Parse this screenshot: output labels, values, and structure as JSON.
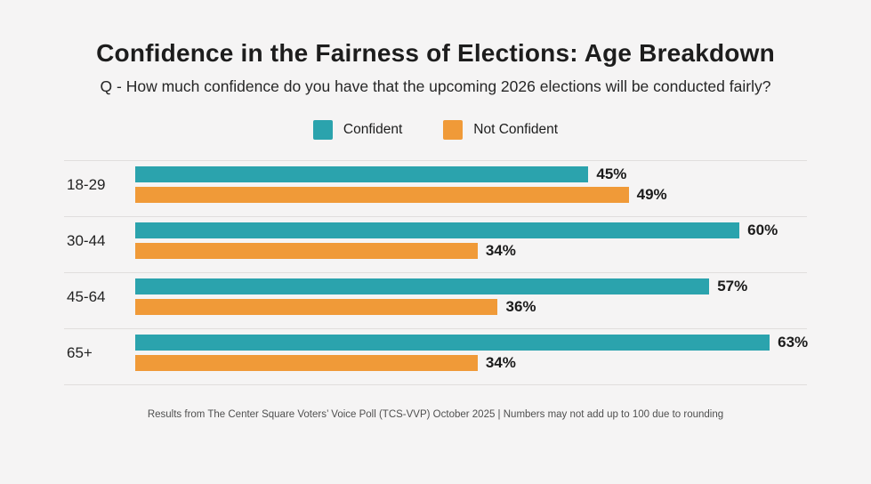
{
  "header": {
    "title": "Confidence in the Fairness of Elections: Age Breakdown",
    "subtitle": "Q - How much confidence do you have that the upcoming 2026 elections will be conducted fairly?"
  },
  "legend": [
    {
      "label": "Confident",
      "color": "#2BA3AD"
    },
    {
      "label": "Not Confident",
      "color": "#F09A38"
    }
  ],
  "chart_data": {
    "type": "bar",
    "orientation": "horizontal",
    "title": "Confidence in the Fairness of Elections: Age Breakdown",
    "xlabel": "",
    "ylabel": "",
    "categories": [
      "18-29",
      "30-44",
      "45-64",
      "65+"
    ],
    "series": [
      {
        "name": "Confident",
        "color": "#2BA3AD",
        "values": [
          45,
          60,
          57,
          63
        ]
      },
      {
        "name": "Not Confident",
        "color": "#F09A38",
        "values": [
          49,
          34,
          36,
          34
        ]
      }
    ],
    "value_suffix": "%",
    "xlim": [
      0,
      66.7
    ],
    "grid": false,
    "legend_position": "top",
    "data_labels": true
  },
  "footer": {
    "note": "Results from The Center Square Voters’ Voice Poll (TCS-VVP) October 2025 | Numbers may not add up to 100 due to rounding"
  },
  "colors": {
    "background": "#F5F4F4",
    "confident": "#2BA3AD",
    "not_confident": "#F09A38",
    "divider": "#E0DEDD",
    "title_text": "#1D1D1D",
    "footer_text": "#4F4F4F"
  }
}
